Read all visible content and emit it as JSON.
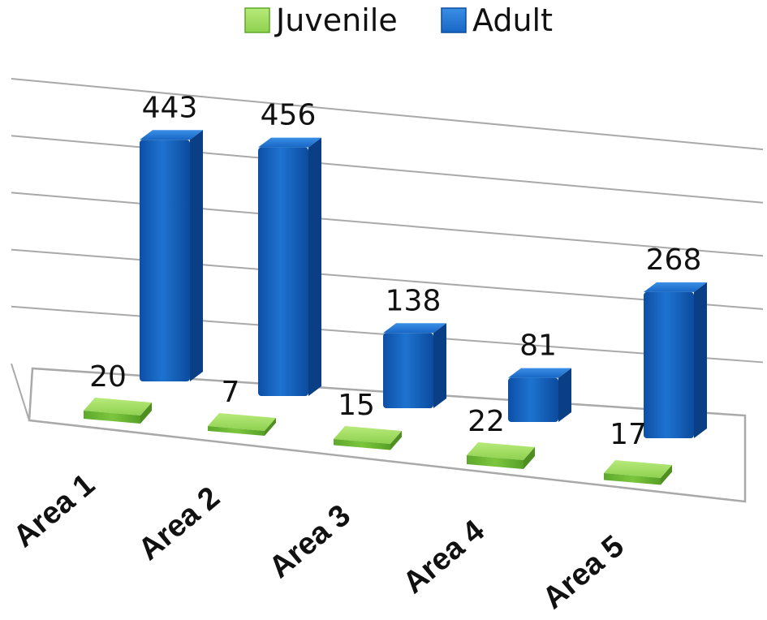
{
  "chart_data": {
    "type": "bar",
    "categories": [
      "Area 1",
      "Area 2",
      "Area 3",
      "Area 4",
      "Area 5"
    ],
    "series": [
      {
        "name": "Juvenile",
        "values": [
          20,
          7,
          15,
          22,
          17
        ],
        "color": "#8fd14f"
      },
      {
        "name": "Adult",
        "values": [
          443,
          456,
          138,
          81,
          268
        ],
        "color": "#1565c0"
      }
    ],
    "title": "",
    "xlabel": "",
    "ylabel": "",
    "ylim": [
      0,
      500
    ],
    "grid": true,
    "legend_position": "top",
    "style": "3d-perspective"
  }
}
